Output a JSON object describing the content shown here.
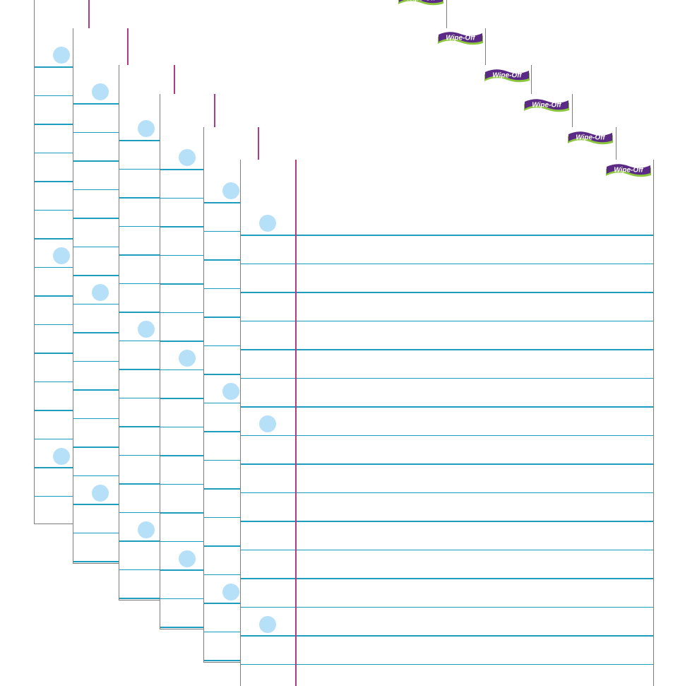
{
  "product": {
    "brand_logo_text": "Wipe-Off",
    "sheet_count": 6
  },
  "colors": {
    "paper": "#ffffff",
    "edge": "#7d7d7d",
    "rule_line": "#1d9dbb",
    "margin_line": "#b23a82",
    "punch_hole": "#b5e0f7",
    "logo_ribbon_purple": "#5b2a86",
    "logo_ribbon_green": "#8cc63f"
  },
  "icons": {
    "logo": "wipe-off-logo",
    "hole": "punch-hole"
  }
}
